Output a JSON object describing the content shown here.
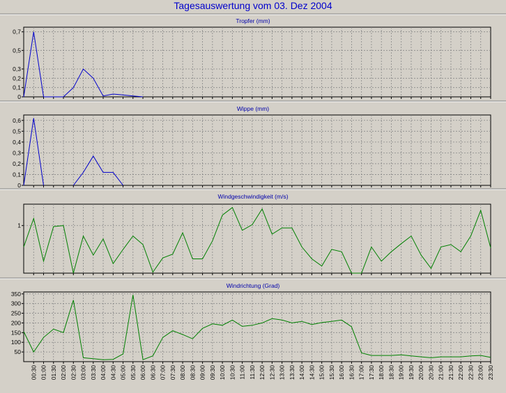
{
  "title": "Tagesauswertung vom 03. Dez 2004",
  "colors": {
    "background": "#d4d0c8",
    "title": "#0000cc",
    "blue_series": "#0000cc",
    "green_series": "#008000",
    "plot_bg": "#d4d0c8",
    "grid": "#888888"
  },
  "x_labels": [
    "00:30",
    "01:00",
    "01:30",
    "02:00",
    "02:30",
    "03:00",
    "03:30",
    "04:00",
    "04:30",
    "05:00",
    "05:30",
    "06:00",
    "06:30",
    "07:00",
    "07:30",
    "08:00",
    "08:30",
    "09:00",
    "09:30",
    "10:00",
    "10:30",
    "11:00",
    "11:30",
    "12:00",
    "12:30",
    "13:00",
    "13:30",
    "14:00",
    "14:30",
    "15:00",
    "15:30",
    "16:00",
    "16:30",
    "17:00",
    "17:30",
    "18:00",
    "18:30",
    "19:00",
    "19:30",
    "20:00",
    "20:30",
    "21:00",
    "21:30",
    "22:00",
    "22:30",
    "23:00",
    "23:30"
  ],
  "chart_data": [
    {
      "type": "line",
      "title": "Tropfer (mm)",
      "color": "#0000cc",
      "ylim": [
        0,
        0.75
      ],
      "yticks": [
        "0",
        "0,1",
        "0,2",
        "0,3",
        "0,5",
        "0,7"
      ],
      "ytick_values": [
        0,
        0.1,
        0.2,
        0.3,
        0.5,
        0.7
      ],
      "values": [
        0,
        0.7,
        0,
        0,
        0,
        0.1,
        0.3,
        0.2,
        0.01,
        0.03,
        0.02,
        0.01,
        0,
        null,
        null,
        null,
        null,
        null,
        null,
        null,
        null,
        null,
        null,
        null,
        null,
        null,
        null,
        null,
        null,
        null,
        null,
        null,
        null,
        null,
        null,
        null,
        null,
        null,
        null,
        null,
        null,
        null,
        null,
        null,
        null,
        null,
        null,
        null
      ]
    },
    {
      "type": "line",
      "title": "Wippe (mm)",
      "color": "#0000cc",
      "ylim": [
        0,
        0.65
      ],
      "yticks": [
        "0",
        "0,1",
        "0,2",
        "0,3",
        "0,4",
        "0,5",
        "0,6"
      ],
      "ytick_values": [
        0,
        0.1,
        0.2,
        0.3,
        0.4,
        0.5,
        0.6
      ],
      "values": [
        0,
        0.62,
        0,
        null,
        null,
        0,
        0.12,
        0.27,
        0.12,
        0.12,
        0,
        null,
        null,
        null,
        null,
        null,
        null,
        null,
        null,
        null,
        null,
        null,
        null,
        null,
        null,
        null,
        null,
        null,
        null,
        null,
        null,
        null,
        null,
        null,
        null,
        null,
        null,
        null,
        null,
        null,
        null,
        null,
        null,
        null,
        null,
        null,
        null,
        null
      ]
    },
    {
      "type": "line",
      "title": "Windgeschwindigkeit (m/s)",
      "color": "#008000",
      "ylim": [
        0,
        1.45
      ],
      "yticks": [
        "1"
      ],
      "ytick_values": [
        1
      ],
      "values": [
        0.55,
        1.15,
        0.25,
        0.98,
        1.0,
        0.0,
        0.78,
        0.38,
        0.72,
        0.2,
        0.5,
        0.78,
        0.6,
        0.02,
        0.32,
        0.4,
        0.85,
        0.3,
        0.3,
        0.68,
        1.22,
        1.38,
        0.9,
        1.02,
        1.35,
        0.82,
        0.95,
        0.95,
        0.55,
        0.3,
        0.15,
        0.5,
        0.45,
        0.0,
        0.0,
        0.55,
        0.25,
        0.45,
        0.62,
        0.78,
        0.38,
        0.1,
        0.55,
        0.6,
        0.45,
        0.78,
        1.32,
        0.53
      ]
    },
    {
      "type": "line",
      "title": "Windrichtung (Grad)",
      "color": "#008000",
      "ylim": [
        0,
        360
      ],
      "yticks": [
        "50",
        "100",
        "150",
        "200",
        "250",
        "300",
        "350"
      ],
      "ytick_values": [
        50,
        100,
        150,
        200,
        250,
        300,
        350
      ],
      "values": [
        155,
        50,
        125,
        168,
        150,
        318,
        20,
        15,
        10,
        12,
        40,
        345,
        10,
        30,
        125,
        160,
        140,
        118,
        172,
        195,
        188,
        215,
        182,
        188,
        200,
        222,
        215,
        200,
        208,
        192,
        202,
        208,
        215,
        180,
        45,
        32,
        32,
        32,
        35,
        30,
        25,
        20,
        25,
        25,
        25,
        30,
        32,
        22
      ]
    }
  ]
}
